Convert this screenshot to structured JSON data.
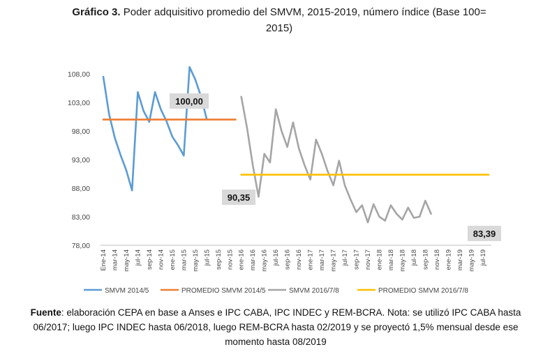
{
  "chart_data": {
    "type": "line",
    "title_prefix": "Gráfico 3.",
    "title": "Poder adquisitivo promedio del SMVM, 2015-2019, número índice (Base 100= 2015)",
    "ylim": [
      78,
      110
    ],
    "yticks": [
      "108,00",
      "103,00",
      "98,00",
      "93,00",
      "88,00",
      "83,00",
      "78,00"
    ],
    "ytick_values": [
      108,
      103,
      98,
      93,
      88,
      83,
      78
    ],
    "categories": [
      "Ene-14",
      "mar-14",
      "may-14",
      "jul-14",
      "sep-14",
      "nov-14",
      "ene-15",
      "mar-15",
      "may-15",
      "jul-15",
      "sep-15",
      "nov-15",
      "ene-16",
      "mar-16",
      "may-16",
      "jul-16",
      "sep-16",
      "nov-16",
      "ene-17",
      "mar-17",
      "may-17",
      "jul-17",
      "sep-17",
      "nov-17",
      "ene-18",
      "mar-18",
      "may-18",
      "jul-18",
      "sep-18",
      "nov-18",
      "ene-19",
      "mar-19",
      "may-19",
      "jul-19"
    ],
    "series": [
      {
        "name": "SMVM 2014/5",
        "color": "#5b9bd5",
        "x": [
          0,
          1,
          2,
          3,
          4,
          5,
          6,
          7,
          8,
          9,
          10,
          11,
          12,
          13,
          14,
          15,
          16,
          17,
          18,
          19,
          20,
          21,
          22,
          23
        ],
        "values": [
          107.5,
          101.0,
          96.8,
          93.8,
          91.1,
          87.6,
          104.8,
          101.5,
          99.6,
          104.8,
          101.8,
          99.7,
          97.0,
          95.5,
          93.7,
          109.2,
          107.0,
          104.0,
          100.0,
          null,
          null,
          null,
          null,
          null
        ]
      },
      {
        "name": "PROMEDIO SMVM 2014/5",
        "color": "#ed7d31",
        "x": [
          0,
          23
        ],
        "values": [
          100.0,
          100.0
        ]
      },
      {
        "name": "SMVM 2016/7/8",
        "color": "#a5a5a5",
        "x": [
          24,
          25,
          26,
          27,
          28,
          29,
          30,
          31,
          32,
          33,
          34,
          35,
          36,
          37,
          38,
          39,
          40,
          41,
          42,
          43,
          44,
          45,
          46,
          47,
          48,
          49,
          50,
          51,
          52,
          53,
          54,
          55,
          56,
          57,
          58,
          59,
          60,
          61,
          62,
          63,
          64,
          65,
          66,
          67
        ],
        "values": [
          104.0,
          98.5,
          92.0,
          86.5,
          94.0,
          92.5,
          101.8,
          98.0,
          95.2,
          99.5,
          95.0,
          92.0,
          89.5,
          96.5,
          94.0,
          91.0,
          88.5,
          92.8,
          88.5,
          86.0,
          83.8,
          85.0,
          82.0,
          85.2,
          83.0,
          82.3,
          85.0,
          83.5,
          82.5,
          84.6,
          82.8,
          83.0,
          85.8,
          83.5,
          null,
          null,
          null,
          null,
          null,
          null,
          null,
          null,
          null,
          null
        ]
      },
      {
        "name": "PROMEDIO SMVM 2016/7/8",
        "color": "#ffc000",
        "x": [
          24,
          67
        ],
        "values": [
          90.35,
          90.35
        ]
      }
    ],
    "annotations": [
      "100,00",
      "90,35",
      "83,39"
    ],
    "legend": [
      "SMVM 2014/5",
      "PROMEDIO SMVM 2014/5",
      "SMVM 2016/7/8",
      "PROMEDIO SMVM 2016/7/8"
    ],
    "legend_position": "bottom",
    "grid": false
  },
  "source": {
    "label": "Fuente",
    "text": ": elaboración CEPA en base a Anses e IPC CABA, IPC INDEC y REM-BCRA. Nota: se utilizó IPC CABA hasta 06/2017; luego IPC INDEC hasta 06/2018, luego REM-BCRA hasta 02/2019 y se proyectó 1,5% mensual desde ese momento hasta 08/2019"
  }
}
